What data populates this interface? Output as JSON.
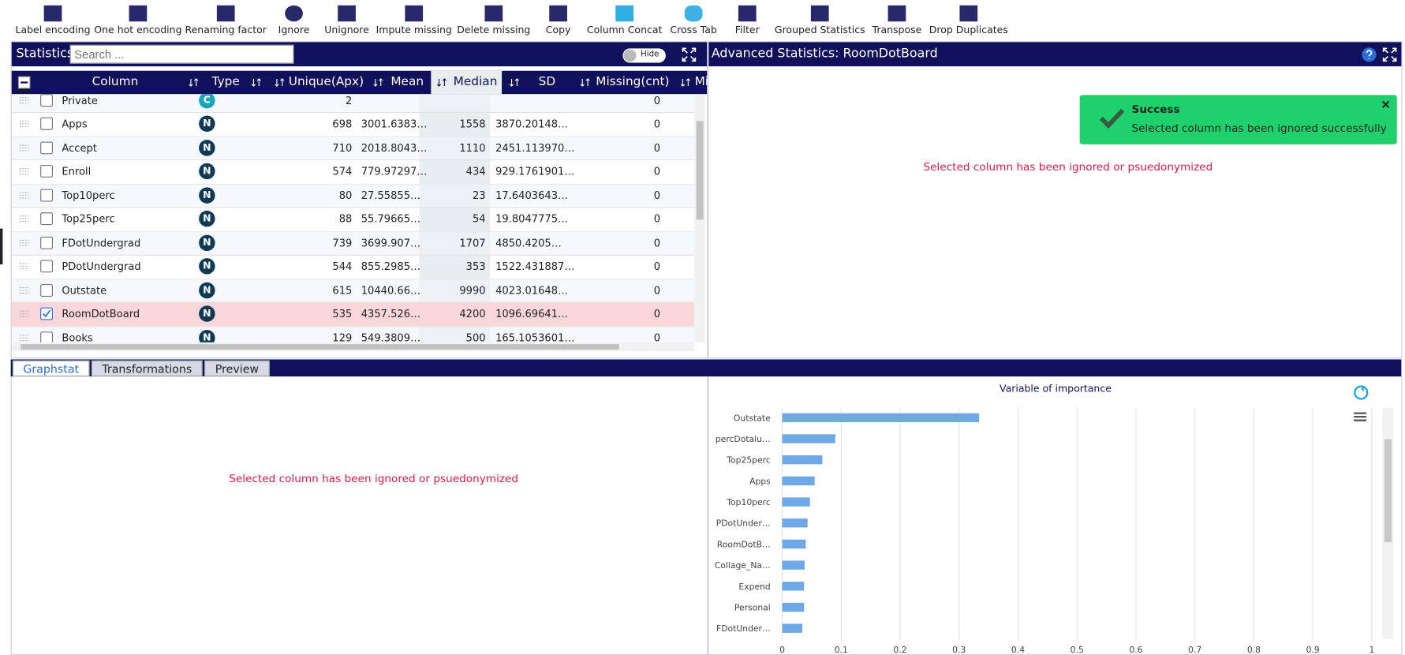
{
  "toolbar": [
    "Label encoding",
    "One hot encoding",
    "Renaming factor",
    "Ignore",
    "Unignore",
    "Impute missing",
    "Delete missing",
    "Copy",
    "Column Concat",
    "Cross Tab",
    "Filter",
    "Grouped Statistics",
    "Transpose",
    "Drop Duplicates"
  ],
  "statistics": {
    "title": "Statistics",
    "search_placeholder": "Search ...",
    "toggle": "Hide",
    "columns": [
      "Column",
      "Type",
      "Unique(Apx)",
      "Mean",
      "Median",
      "SD",
      "Missing(cnt)",
      "Mi"
    ],
    "rows": [
      {
        "name": "Private",
        "type": "C",
        "unique": "2",
        "missing": "0"
      },
      {
        "name": "Apps",
        "type": "N",
        "unique": "698",
        "mean": "3001.6383…",
        "median": "1558",
        "sd": "3870.20148…",
        "missing": "0"
      },
      {
        "name": "Accept",
        "type": "N",
        "unique": "710",
        "mean": "2018.8043…",
        "median": "1110",
        "sd": "2451.113970…",
        "missing": "0"
      },
      {
        "name": "Enroll",
        "type": "N",
        "unique": "574",
        "mean": "779.97297…",
        "median": "434",
        "sd": "929.1761901…",
        "missing": "0"
      },
      {
        "name": "Top10perc",
        "type": "N",
        "unique": "80",
        "mean": "27.55855…",
        "median": "23",
        "sd": "17.6403643…",
        "missing": "0"
      },
      {
        "name": "Top25perc",
        "type": "N",
        "unique": "88",
        "mean": "55.79665…",
        "median": "54",
        "sd": "19.8047775…",
        "missing": "0"
      },
      {
        "name": "FDotUndergrad",
        "type": "N",
        "unique": "739",
        "mean": "3699.907…",
        "median": "1707",
        "sd": "4850.4205…",
        "missing": "0"
      },
      {
        "name": "PDotUndergrad",
        "type": "N",
        "unique": "544",
        "mean": "855.2985…",
        "median": "353",
        "sd": "1522.431887…",
        "missing": "0"
      },
      {
        "name": "Outstate",
        "type": "N",
        "unique": "615",
        "mean": "10440.66…",
        "median": "9990",
        "sd": "4023.01648…",
        "missing": "0"
      },
      {
        "name": "RoomDotBoard",
        "type": "N",
        "unique": "535",
        "mean": "4357.526…",
        "median": "4200",
        "sd": "1096.69641…",
        "missing": "0",
        "checked": true
      },
      {
        "name": "Books",
        "type": "N",
        "unique": "129",
        "mean": "549.3809…",
        "median": "500",
        "sd": "165.1053601…",
        "missing": "0"
      }
    ]
  },
  "advanced": {
    "title": "Advanced Statistics: RoomDotBoard",
    "message": "Selected column has been ignored or psuedonymized",
    "toast": {
      "title": "Success",
      "message": "Selected column has been ignored successfully"
    }
  },
  "tabs": [
    "Graphstat",
    "Transformations",
    "Preview"
  ],
  "graphstat_message": "Selected column has been ignored or psuedonymized",
  "chart_data": {
    "type": "bar",
    "orientation": "horizontal",
    "title": "Variable of importance",
    "categories": [
      "Outstate",
      "percDotalu…",
      "Top25perc",
      "Apps",
      "Top10perc",
      "PDotUnder…",
      "RoomDotB…",
      "Collage_Na…",
      "Expend",
      "Personal",
      "FDotUnder…"
    ],
    "values": [
      0.334,
      0.09,
      0.068,
      0.055,
      0.047,
      0.043,
      0.04,
      0.038,
      0.037,
      0.037,
      0.034
    ],
    "color": "#6fa8e6",
    "xlim": [
      0,
      1
    ],
    "xticks": [
      0,
      0.1,
      0.2,
      0.3,
      0.4,
      0.5,
      0.6,
      0.7,
      0.8,
      0.9,
      1
    ],
    "grid": true
  }
}
